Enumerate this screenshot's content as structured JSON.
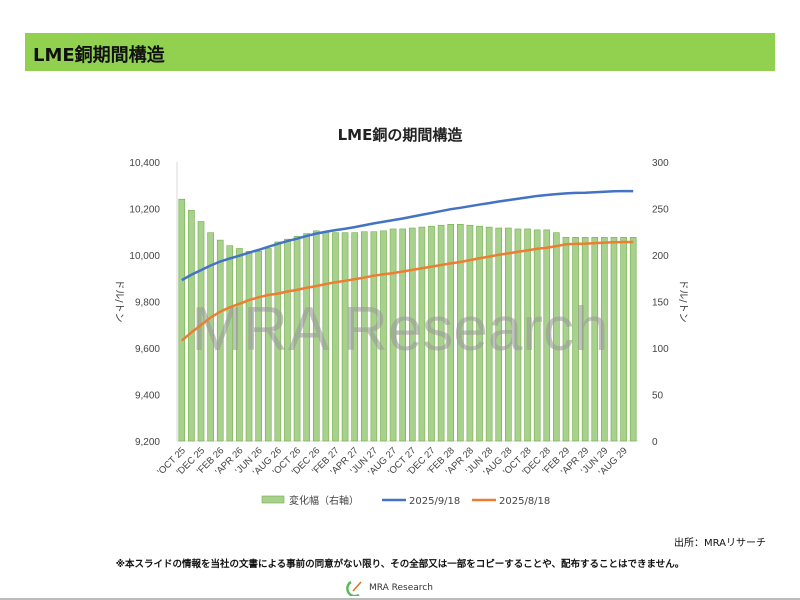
{
  "header": {
    "title": "LME銅期間構造"
  },
  "chart_data": {
    "type": "bar+line",
    "title": "LME銅の期間構造",
    "ylabel": "ドル/トン",
    "y2label": "ドル/トン",
    "ylim": [
      9200,
      10400
    ],
    "yticks": [
      9200,
      9400,
      9600,
      9800,
      10000,
      10200,
      10400
    ],
    "y2lim": [
      0,
      300
    ],
    "y2ticks": [
      0,
      50,
      100,
      150,
      200,
      250,
      300
    ],
    "x_tick_labels": [
      "'OCT 25",
      "'DEC 25",
      "'FEB 26",
      "'APR 26",
      "'JUN 26",
      "'AUG 26",
      "'OCT 26",
      "'DEC 26",
      "'FEB 27",
      "'APR 27",
      "'JUN 27",
      "'AUG 27",
      "'OCT 27",
      "'DEC 27",
      "'FEB 28",
      "'APR 28",
      "'JUN 28",
      "'AUG 28",
      "'OCT 28",
      "'DEC 28",
      "'FEB 29",
      "'APR 29",
      "'JUN 29",
      "'AUG 29"
    ],
    "legend_position": "bottom",
    "series": [
      {
        "name": "変化幅（右軸）",
        "type": "bar",
        "axis": "right",
        "color": "#a9d18e",
        "values": [
          260,
          248,
          236,
          224,
          216,
          210,
          207,
          204,
          204,
          207,
          214,
          217,
          220,
          223,
          226,
          225,
          224,
          224,
          224,
          225,
          225,
          226,
          228,
          228,
          229,
          230,
          231,
          232,
          233,
          233,
          232,
          231,
          230,
          229,
          229,
          228,
          228,
          227,
          227,
          224,
          219,
          219,
          219,
          219,
          219,
          219,
          219,
          219
        ]
      },
      {
        "name": "2025/9/18",
        "type": "line",
        "axis": "left",
        "color": "#4472c4",
        "values": [
          9892,
          9915,
          9935,
          9955,
          9972,
          9985,
          9997,
          10010,
          10022,
          10035,
          10048,
          10060,
          10070,
          10082,
          10092,
          10100,
          10107,
          10113,
          10120,
          10128,
          10136,
          10143,
          10150,
          10157,
          10165,
          10173,
          10181,
          10189,
          10197,
          10203,
          10210,
          10217,
          10223,
          10230,
          10236,
          10242,
          10248,
          10254,
          10258,
          10262,
          10265,
          10267,
          10268,
          10270,
          10272,
          10274,
          10275,
          10275
        ]
      },
      {
        "name": "2025/8/18",
        "type": "line",
        "axis": "left",
        "color": "#ed7d31",
        "values": [
          9632,
          9667,
          9699,
          9731,
          9756,
          9775,
          9790,
          9806,
          9818,
          9828,
          9834,
          9843,
          9850,
          9859,
          9866,
          9875,
          9883,
          9889,
          9896,
          9903,
          9911,
          9917,
          9922,
          9929,
          9936,
          9943,
          9950,
          9957,
          9964,
          9970,
          9978,
          9986,
          9993,
          10001,
          10007,
          10014,
          10020,
          10027,
          10031,
          10038,
          10046,
          10048,
          10049,
          10051,
          10053,
          10055,
          10056,
          10056
        ]
      }
    ],
    "watermark": "MRA Research"
  },
  "footer": {
    "source": "出所：MRAリサーチ",
    "disclaimer": "※本スライドの情報を当社の文書による事前の同意がない限り、その全部又は一部をコピーすることや、配布することはできません。",
    "logo_text": "MRA Research"
  }
}
